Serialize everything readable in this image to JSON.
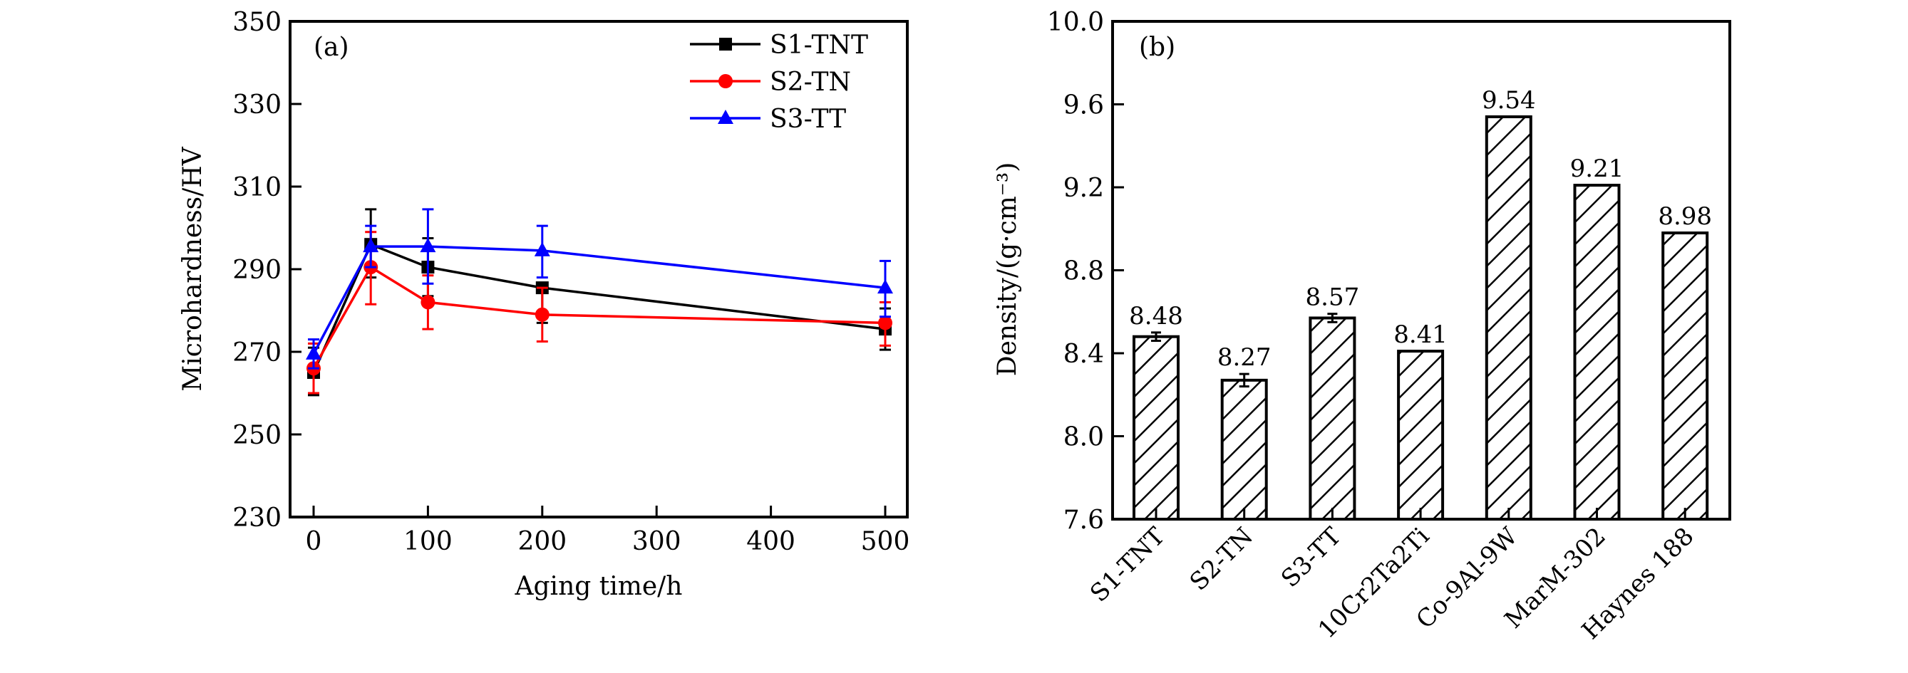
{
  "chart_data": [
    {
      "panel": "(a)",
      "type": "line",
      "title": "",
      "xlabel": "Aging time/h",
      "ylabel": "Microhardness/HV",
      "xlim": [
        -10,
        520
      ],
      "ylim": [
        230,
        350
      ],
      "xticks": [
        0,
        100,
        200,
        300,
        400,
        500
      ],
      "yticks": [
        230,
        250,
        270,
        290,
        310,
        330,
        350
      ],
      "grid": false,
      "legend_position": "top-right",
      "x": [
        0,
        50,
        100,
        200,
        500
      ],
      "series": [
        {
          "name": "S1-TNT",
          "color": "#000000",
          "marker": "square",
          "values": [
            265,
            296,
            290.5,
            285.5,
            275.5
          ],
          "error_low": [
            259.5,
            288,
            283.5,
            277,
            270.5
          ],
          "error_high": [
            271,
            304.5,
            297.5,
            286,
            280.5
          ]
        },
        {
          "name": "S2-TN",
          "color": "#ff0000",
          "marker": "circle",
          "values": [
            266,
            290.5,
            282,
            279,
            277
          ],
          "error_low": [
            260,
            281.5,
            275.5,
            272.5,
            271.5
          ],
          "error_high": [
            272,
            299,
            288.5,
            285.5,
            282
          ]
        },
        {
          "name": "S3-TT",
          "color": "#0000ff",
          "marker": "triangle",
          "values": [
            269.5,
            295.5,
            295.5,
            294.5,
            285.5
          ],
          "error_low": [
            266,
            290.5,
            286.5,
            288,
            278.5
          ],
          "error_high": [
            273,
            300.5,
            304.5,
            300.5,
            292
          ]
        }
      ]
    },
    {
      "panel": "(b)",
      "type": "bar",
      "title": "",
      "xlabel": "",
      "ylabel": "Density/(g·cm⁻³)",
      "ylim": [
        7.6,
        10.0
      ],
      "yticks": [
        "7.6",
        "8.0",
        "8.4",
        "8.8",
        "9.2",
        "9.6",
        "10.0"
      ],
      "grid": false,
      "fill_pattern": "diagonal-hatch",
      "categories": [
        "S1-TNT",
        "S2-TN",
        "S3-TT",
        "10Cr2Ta2Ti",
        "Co-9Al-9W",
        "MarM-302",
        "Haynes 188"
      ],
      "values": [
        8.48,
        8.27,
        8.57,
        8.41,
        9.54,
        9.21,
        8.98
      ],
      "value_labels": [
        "8.48",
        "8.27",
        "8.57",
        "8.41",
        "9.54",
        "9.21",
        "8.98"
      ],
      "errors": [
        0.02,
        0.03,
        0.02,
        null,
        null,
        null,
        null
      ]
    }
  ]
}
